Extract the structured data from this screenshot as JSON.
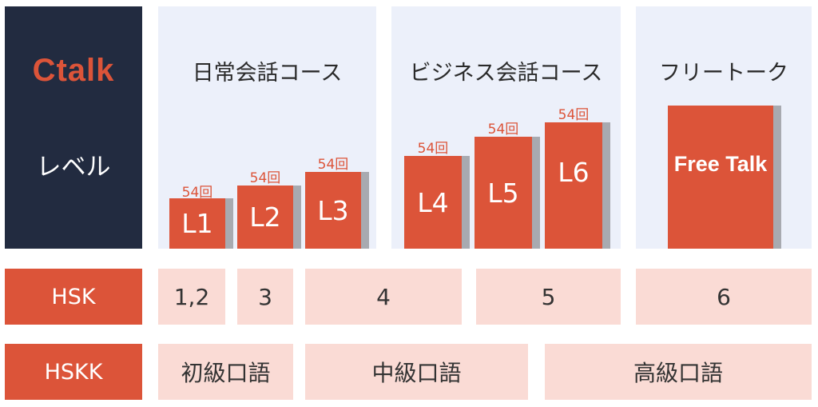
{
  "brand": "Ctalk",
  "level_label": "レベル",
  "courses": [
    {
      "title": "日常会話コース"
    },
    {
      "title": "ビジネス会話コース"
    },
    {
      "title": "フリートーク"
    }
  ],
  "levels": [
    {
      "label": "L1",
      "count": "54回"
    },
    {
      "label": "L2",
      "count": "54回"
    },
    {
      "label": "L3",
      "count": "54回"
    },
    {
      "label": "L4",
      "count": "54回"
    },
    {
      "label": "L5",
      "count": "54回"
    },
    {
      "label": "L6",
      "count": "54回"
    }
  ],
  "free_talk_label": "Free Talk",
  "hsk": {
    "label": "HSK",
    "cells": [
      "1,2",
      "3",
      "4",
      "5",
      "6"
    ]
  },
  "hskk": {
    "label": "HSKK",
    "cells": [
      "初級口語",
      "中級口語",
      "高級口語"
    ]
  },
  "colors": {
    "accent": "#dc5439",
    "navy": "#222b40",
    "panel": "#ecf0fa",
    "pink": "#fadbd5"
  }
}
